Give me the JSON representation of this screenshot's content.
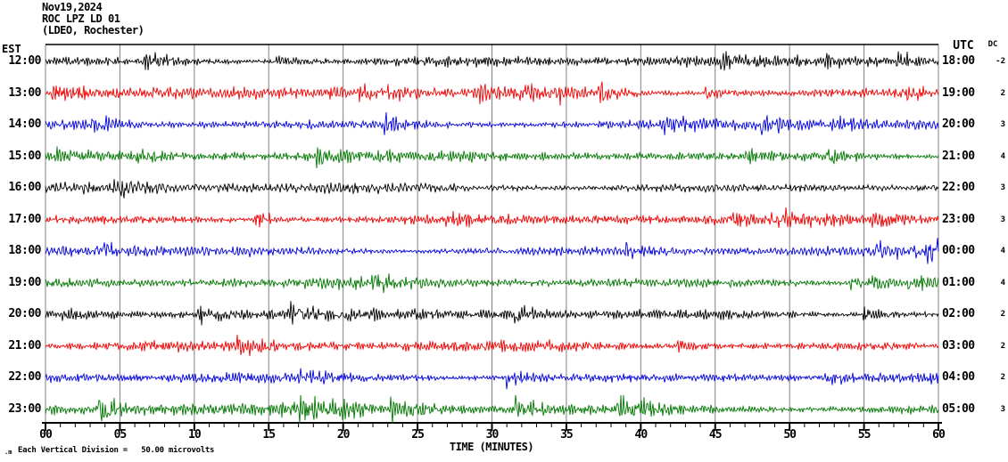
{
  "title": {
    "date": "Nov19,2024",
    "station_line": "ROC LPZ LD 01",
    "location_line": "(LDEO, Rochester)"
  },
  "left_axis_label": "EST",
  "right_axis_label": "UTC",
  "dc_label": "DC",
  "x_axis_title": "TIME (MINUTES)",
  "x_ticks": [
    "00",
    "05",
    "10",
    "15",
    "20",
    "25",
    "30",
    "35",
    "40",
    "45",
    "50",
    "55",
    "60"
  ],
  "footer_note": "Each Vertical Division =   50.00 microvolts",
  "corner_glyph": ".m",
  "colors": {
    "background": "#ffffff",
    "grid": "#808080",
    "frame": "#000000",
    "axis": "#000000",
    "trace_palette": [
      "#000000",
      "#ee0000",
      "#0000dd",
      "#007700"
    ]
  },
  "chart_data": {
    "type": "line",
    "subtype": "seismogram_helicorder",
    "title": "ROC LPZ LD 01 (LDEO, Rochester) Nov19,2024",
    "xlabel": "TIME (MINUTES)",
    "x_range_minutes": [
      0,
      60
    ],
    "x_major_tick_minutes": 5,
    "x_minor_tick_minutes": 1,
    "grid": true,
    "vertical_division_microvolts": 50.0,
    "rows": [
      {
        "est": "12:00",
        "utc": "18:00",
        "dc": "-2",
        "color": "#000000"
      },
      {
        "est": "13:00",
        "utc": "19:00",
        "dc": "2",
        "color": "#ee0000"
      },
      {
        "est": "14:00",
        "utc": "20:00",
        "dc": "3",
        "color": "#0000dd"
      },
      {
        "est": "15:00",
        "utc": "21:00",
        "dc": "4",
        "color": "#007700"
      },
      {
        "est": "16:00",
        "utc": "22:00",
        "dc": "3",
        "color": "#000000"
      },
      {
        "est": "17:00",
        "utc": "23:00",
        "dc": "3",
        "color": "#ee0000"
      },
      {
        "est": "18:00",
        "utc": "00:00",
        "dc": "4",
        "color": "#0000dd"
      },
      {
        "est": "19:00",
        "utc": "01:00",
        "dc": "4",
        "color": "#007700"
      },
      {
        "est": "20:00",
        "utc": "02:00",
        "dc": "2",
        "color": "#000000"
      },
      {
        "est": "21:00",
        "utc": "03:00",
        "dc": "2",
        "color": "#ee0000"
      },
      {
        "est": "22:00",
        "utc": "04:00",
        "dc": "2",
        "color": "#0000dd"
      },
      {
        "est": "23:00",
        "utc": "05:00",
        "dc": "3",
        "color": "#007700"
      }
    ],
    "trace_style": {
      "description": "continuous background seismic noise, each row = one hour, intermittent higher-amplitude bursts",
      "approx_peak_amplitude_divisions": 0.4
    }
  }
}
